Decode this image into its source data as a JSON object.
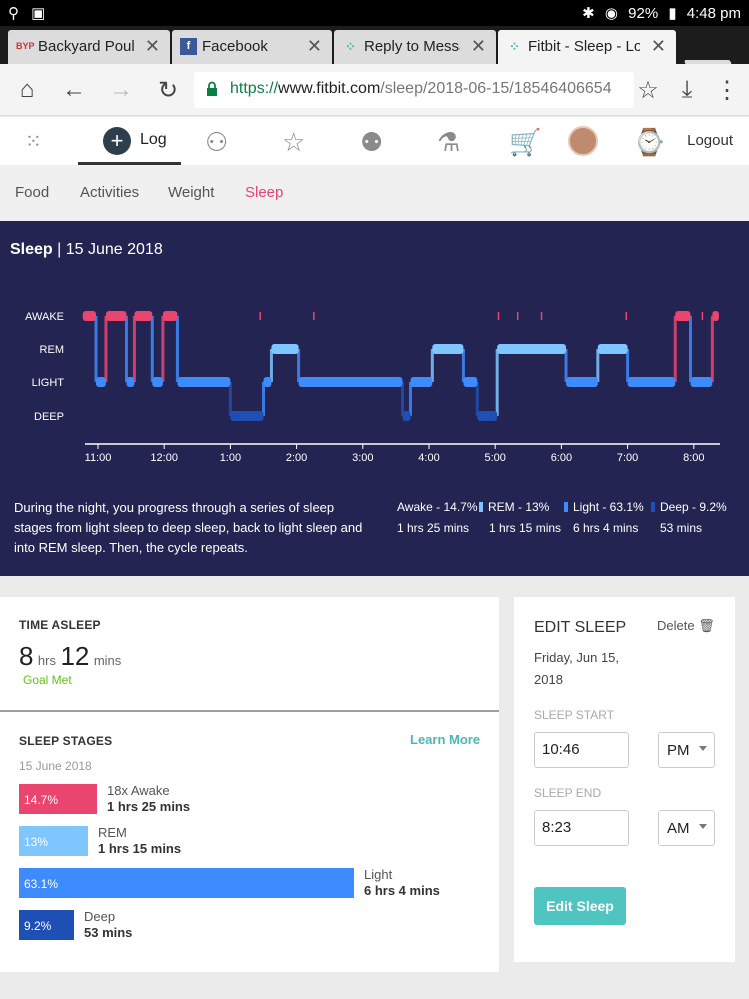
{
  "statusbar": {
    "battery": "92%",
    "time": "4:48 pm"
  },
  "tabs": [
    {
      "title": "Backyard Poultry",
      "icon": "BYP"
    },
    {
      "title": "Facebook",
      "icon": "f"
    },
    {
      "title": "Reply to Message",
      "icon": "fitbit"
    },
    {
      "title": "Fitbit - Sleep - Log",
      "icon": "fitbit"
    }
  ],
  "address": {
    "scheme": "https://",
    "host": "www.fitbit.com",
    "path": "/sleep/2018-06-15/18546406654"
  },
  "header": {
    "log_label": "Log",
    "logout_label": "Logout"
  },
  "subnav": {
    "items": [
      "Food",
      "Activities",
      "Weight",
      "Sleep"
    ],
    "active": "Sleep"
  },
  "sleep_panel": {
    "title": "Sleep",
    "date": "15 June 2018",
    "description": "During the night, you progress through a series of sleep stages from light sleep to deep sleep, back to light sleep and into REM sleep. Then, the cycle repeats.",
    "legend": [
      {
        "label": "Awake - 14.7%",
        "duration": "1 hrs 25 mins",
        "color": "#e9456f"
      },
      {
        "label": "REM - 13%",
        "duration": "1 hrs 15 mins",
        "color": "#7fc6ff"
      },
      {
        "label": "Light - 63.1%",
        "duration": "6 hrs 4 mins",
        "color": "#3d8bfd"
      },
      {
        "label": "Deep - 9.2%",
        "duration": "53 mins",
        "color": "#1e4fb4"
      }
    ]
  },
  "chart_data": {
    "type": "line",
    "title": "",
    "y_categories": [
      "AWAKE",
      "REM",
      "LIGHT",
      "DEEP"
    ],
    "x_tick_labels": [
      "11:00",
      "12:00",
      "1:00",
      "2:00",
      "3:00",
      "4:00",
      "5:00",
      "6:00",
      "7:00",
      "8:00"
    ],
    "x_range_hours_from_11pm": [
      -0.23,
      9.38
    ],
    "segments": [
      {
        "start": -0.23,
        "end": -0.03,
        "stage": "AWAKE"
      },
      {
        "start": -0.03,
        "end": 0.12,
        "stage": "LIGHT"
      },
      {
        "start": 0.12,
        "end": 0.43,
        "stage": "AWAKE"
      },
      {
        "start": 0.43,
        "end": 0.55,
        "stage": "LIGHT"
      },
      {
        "start": 0.55,
        "end": 0.82,
        "stage": "AWAKE"
      },
      {
        "start": 0.82,
        "end": 0.98,
        "stage": "LIGHT"
      },
      {
        "start": 0.98,
        "end": 1.2,
        "stage": "AWAKE"
      },
      {
        "start": 1.2,
        "end": 2.0,
        "stage": "LIGHT"
      },
      {
        "start": 2.0,
        "end": 2.5,
        "stage": "DEEP"
      },
      {
        "start": 2.5,
        "end": 2.62,
        "stage": "LIGHT"
      },
      {
        "start": 2.62,
        "end": 3.03,
        "stage": "REM"
      },
      {
        "start": 3.03,
        "end": 4.6,
        "stage": "LIGHT"
      },
      {
        "start": 4.6,
        "end": 4.72,
        "stage": "DEEP"
      },
      {
        "start": 4.72,
        "end": 5.05,
        "stage": "LIGHT"
      },
      {
        "start": 5.05,
        "end": 5.52,
        "stage": "REM"
      },
      {
        "start": 5.52,
        "end": 5.73,
        "stage": "LIGHT"
      },
      {
        "start": 5.73,
        "end": 6.03,
        "stage": "DEEP"
      },
      {
        "start": 6.03,
        "end": 7.07,
        "stage": "REM"
      },
      {
        "start": 7.07,
        "end": 7.55,
        "stage": "LIGHT"
      },
      {
        "start": 7.55,
        "end": 8.0,
        "stage": "REM"
      },
      {
        "start": 8.0,
        "end": 8.72,
        "stage": "LIGHT"
      },
      {
        "start": 8.72,
        "end": 8.95,
        "stage": "AWAKE"
      },
      {
        "start": 8.95,
        "end": 9.28,
        "stage": "LIGHT"
      },
      {
        "start": 9.28,
        "end": 9.38,
        "stage": "AWAKE"
      }
    ],
    "awake_blips": [
      2.45,
      3.26,
      6.05,
      6.34,
      6.7,
      7.98,
      9.13,
      9.31
    ],
    "grid": false
  },
  "time_asleep": {
    "label": "TIME ASLEEP",
    "hours": "8",
    "hours_unit": "hrs",
    "minutes": "12",
    "minutes_unit": "mins",
    "goal": "Goal Met"
  },
  "stages": {
    "label": "SLEEP STAGES",
    "learn_more": "Learn More",
    "date": "15 June 2018",
    "items": [
      {
        "pct_label": "14.7%",
        "name": "18x Awake",
        "duration": "1 hrs 25 mins",
        "fraction": 0.147,
        "color": "#e9456f"
      },
      {
        "pct_label": "13%",
        "name": "REM",
        "duration": "1 hrs 15 mins",
        "fraction": 0.13,
        "color": "#7fc6ff"
      },
      {
        "pct_label": "63.1%",
        "name": "Light",
        "duration": "6 hrs 4 mins",
        "fraction": 0.631,
        "color": "#3d8bfd"
      },
      {
        "pct_label": "9.2%",
        "name": "Deep",
        "duration": "53 mins",
        "fraction": 0.092,
        "color": "#1e4fb4"
      }
    ]
  },
  "edit_sleep": {
    "title": "EDIT SLEEP",
    "delete_label": "Delete",
    "date": "Friday, Jun 15, 2018",
    "start_label": "SLEEP START",
    "start_time": "10:46",
    "start_ampm": "PM",
    "end_label": "SLEEP END",
    "end_time": "8:23",
    "end_ampm": "AM",
    "button": "Edit Sleep"
  }
}
